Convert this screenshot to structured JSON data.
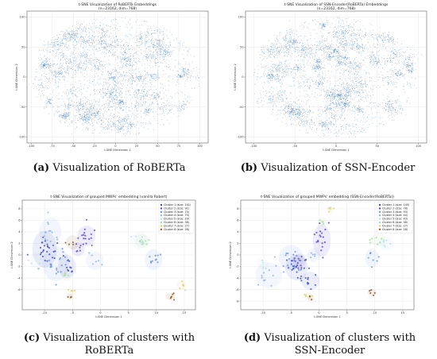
{
  "panels": [
    {
      "id": "a",
      "caption_label": "(a)",
      "caption_text": " Visualization of RoBERTa",
      "chart_data": {
        "type": "scatter",
        "title": "t-SNE Visualization of RoBERTa Embeddings",
        "subtitle": "(n=23162, dim=768)",
        "xlabel": "t-SNE Dimension 1",
        "ylabel": "t-SNE Dimension 2",
        "xlim": [
          -105,
          110
        ],
        "ylim": [
          -110,
          110
        ],
        "xticks": [
          -100,
          -75,
          -50,
          -25,
          0,
          25,
          50,
          75,
          100
        ],
        "yticks": [
          -100,
          -50,
          0,
          50,
          100
        ],
        "grid": true,
        "color": "#4a7fb5",
        "note": "approx. 23162 points forming a dense roughly circular cloud spanning about -100 to 100 on both axes"
      }
    },
    {
      "id": "b",
      "caption_label": "(b)",
      "caption_text": " Visualization of SSN-Encoder",
      "chart_data": {
        "type": "scatter",
        "title": "t-SNE Visualization of SSN-Encoder(RoBERTa) Embeddings",
        "subtitle": "(n=23162, dim=768)",
        "xlabel": "t-SNE Dimension 1",
        "ylabel": "t-SNE Dimension 2",
        "xlim": [
          -110,
          110
        ],
        "ylim": [
          -110,
          110
        ],
        "xticks": [
          -100,
          -50,
          0,
          50,
          100
        ],
        "yticks": [
          -100,
          -50,
          0,
          50,
          100
        ],
        "grid": true,
        "color": "#4a7fb5",
        "note": "approx. 23162 points forming a dense roughly circular cloud spanning about -100 to 100 on both axes"
      }
    },
    {
      "id": "c",
      "caption_label": "(c)",
      "caption_text": " Visualization of clusters with RoBERTa",
      "chart_data": {
        "type": "scatter",
        "title": "t-SNE Visualization of grouped MWPs' embedding (vanilla Robert)",
        "xlabel": "t-SNE Dimension 1",
        "ylabel": "t-SNE Dimension 2",
        "xlim": [
          -14,
          17
        ],
        "ylim": [
          -9.5,
          9.5
        ],
        "xticks": [
          -10,
          -5,
          0,
          5,
          10,
          15
        ],
        "yticks": [
          -6,
          -4,
          -2,
          0,
          2,
          4,
          6,
          8
        ],
        "grid": true,
        "legend_position": "top-right",
        "legend": [
          {
            "label": "Cluster 1 (size: 141)",
            "color": "#3b4cc0"
          },
          {
            "label": "Cluster 2 (size: 91)",
            "color": "#5a3fd0"
          },
          {
            "label": "Cluster 3 (size: 70)",
            "color": "#6c8fe0"
          },
          {
            "label": "Cluster 4 (size: 70)",
            "color": "#8db0e8"
          },
          {
            "label": "Cluster 5 (size: 29)",
            "color": "#b7dcec"
          },
          {
            "label": "Cluster 6 (size: 38)",
            "color": "#a6dba0"
          },
          {
            "label": "Cluster 7 (size: 27)",
            "color": "#d8d070"
          },
          {
            "label": "Cluster 8 (size: 28)",
            "color": "#8c5a2a"
          }
        ]
      }
    },
    {
      "id": "d",
      "caption_label": "(d)",
      "caption_text": " Visualization of clusters with SSN-Encoder",
      "chart_data": {
        "type": "scatter",
        "title": "t-SNE Visualization of grouped MWPs' embedding (SSN-Encoder(RoBERTa))",
        "xlabel": "t-SNE Dimension 1",
        "ylabel": "t-SNE Dimension 2",
        "xlim": [
          -14,
          17
        ],
        "ylim": [
          -9.5,
          9.5
        ],
        "xticks": [
          -10,
          -5,
          0,
          5,
          10,
          15
        ],
        "yticks": [
          -8,
          -6,
          -4,
          -2,
          0,
          2,
          4,
          6,
          8
        ],
        "grid": true,
        "legend_position": "top-right",
        "legend": [
          {
            "label": "Cluster 1 (size: 145)",
            "color": "#3b4cc0"
          },
          {
            "label": "Cluster 2 (size: 78)",
            "color": "#5a3fd0"
          },
          {
            "label": "Cluster 3 (size: 93)",
            "color": "#6c8fe0"
          },
          {
            "label": "Cluster 4 (size: 44)",
            "color": "#8db0e8"
          },
          {
            "label": "Cluster 5 (size: 43)",
            "color": "#b7dcec"
          },
          {
            "label": "Cluster 6 (size: 38)",
            "color": "#a6dba0"
          },
          {
            "label": "Cluster 7 (size: 27)",
            "color": "#d8d070"
          },
          {
            "label": "Cluster 8 (size: 28)",
            "color": "#8c5a2a"
          }
        ]
      }
    }
  ]
}
